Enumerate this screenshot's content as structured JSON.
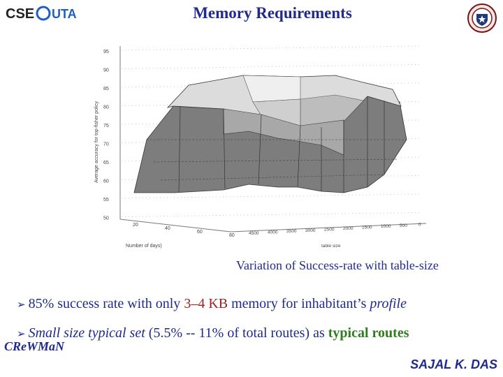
{
  "header": {
    "title": "Memory Requirements",
    "logo_left_text": "CSE@UTA",
    "logo_right_name": "university-seal"
  },
  "figure": {
    "caption": "Variation of Success-rate with table-size",
    "axis_labels": {
      "z": "Average accuracy for top-fisher policy",
      "x": "Number of days)",
      "y": "table size"
    },
    "z_ticks": [
      "95",
      "90",
      "85",
      "80",
      "75",
      "70",
      "65",
      "60",
      "55",
      "50"
    ],
    "x_ticks": [
      "20",
      "40",
      "60",
      "80"
    ],
    "y_ticks": [
      "4500",
      "4000",
      "3500",
      "3000",
      "2500",
      "2000",
      "1500",
      "1000",
      "500",
      "0"
    ]
  },
  "bullets": [
    {
      "parts": [
        {
          "text": "85% success rate with only ",
          "style": "plain"
        },
        {
          "text": "3–4 KB",
          "style": "red"
        },
        {
          "text": " memory for inhabitant’s ",
          "style": "plain"
        },
        {
          "text": "profile",
          "style": "italic"
        }
      ]
    },
    {
      "parts": [
        {
          "text": "Small size typical set",
          "style": "italic"
        },
        {
          "text": " (5.5% -- 11% of total routes) as ",
          "style": "plain"
        },
        {
          "text": "typical routes",
          "style": "green"
        }
      ]
    }
  ],
  "footer": {
    "left": "CReWMaN",
    "right": "SAJAL K. DAS"
  },
  "colors": {
    "text_blue": "#1f2a8c",
    "highlight_red": "#a02020",
    "highlight_green": "#2e7d1e"
  }
}
